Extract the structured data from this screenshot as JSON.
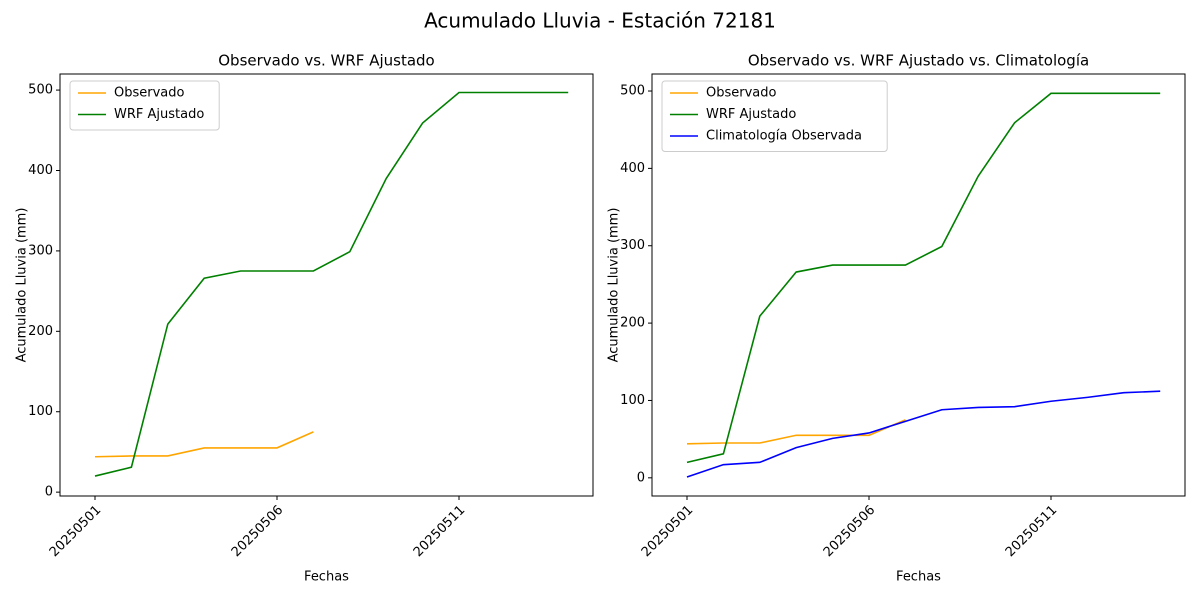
{
  "title": "Acumulado Lluvia - Estación 72181",
  "chart_data": [
    {
      "type": "line",
      "title": "Observado vs. WRF Ajustado",
      "xlabel": "Fechas",
      "ylabel": "Acumulado Lluvia (mm)",
      "x": [
        "20250501",
        "20250502",
        "20250503",
        "20250504",
        "20250505",
        "20250506",
        "20250507",
        "20250508",
        "20250509",
        "20250510",
        "20250511",
        "20250512",
        "20250513",
        "20250514"
      ],
      "xticks": [
        "20250501",
        "20250506",
        "20250511"
      ],
      "ylim": [
        -4.8,
        520
      ],
      "yticks": [
        0,
        100,
        200,
        300,
        400,
        500
      ],
      "legend": "upper left",
      "series": [
        {
          "name": "Observado",
          "color": "#ffa500",
          "values": [
            44,
            45,
            45,
            55,
            55,
            55,
            75,
            null,
            null,
            null,
            null,
            null,
            null,
            null
          ]
        },
        {
          "name": "WRF Ajustado",
          "color": "#008000",
          "values": [
            20,
            31,
            209,
            266,
            275,
            275,
            275,
            299,
            390,
            459,
            497,
            497,
            497,
            497
          ]
        }
      ]
    },
    {
      "type": "line",
      "title": "Observado vs. WRF Ajustado vs. Climatología",
      "xlabel": "Fechas",
      "ylabel": "Acumulado Lluvia (mm)",
      "x": [
        "20250501",
        "20250502",
        "20250503",
        "20250504",
        "20250505",
        "20250506",
        "20250507",
        "20250508",
        "20250509",
        "20250510",
        "20250511",
        "20250512",
        "20250513",
        "20250514"
      ],
      "xticks": [
        "20250501",
        "20250506",
        "20250511"
      ],
      "ylim": [
        -23.5,
        522
      ],
      "yticks": [
        0,
        100,
        200,
        300,
        400,
        500
      ],
      "legend": "upper left",
      "series": [
        {
          "name": "Observado",
          "color": "#ffa500",
          "values": [
            44,
            45,
            45,
            55,
            55,
            55,
            75,
            null,
            null,
            null,
            null,
            null,
            null,
            null
          ]
        },
        {
          "name": "WRF Ajustado",
          "color": "#008000",
          "values": [
            20,
            31,
            209,
            266,
            275,
            275,
            275,
            299,
            390,
            459,
            497,
            497,
            497,
            497
          ]
        },
        {
          "name": "Climatología Observada",
          "color": "#0000ff",
          "values": [
            1,
            17,
            20,
            39,
            51,
            58,
            73,
            88,
            91,
            92,
            99,
            104,
            110,
            112
          ]
        }
      ]
    }
  ]
}
